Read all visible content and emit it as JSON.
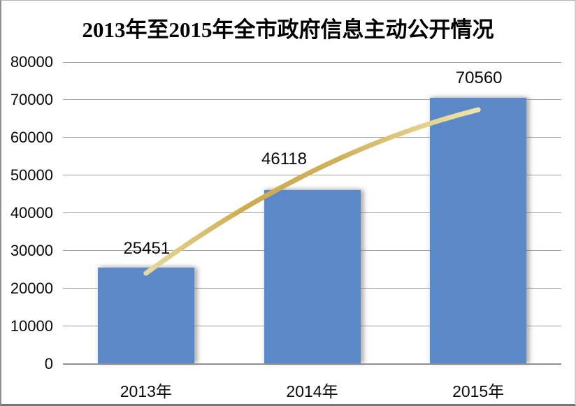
{
  "chart_data": {
    "type": "bar",
    "title": "2013年至2015年全市政府信息主动公开情况",
    "categories": [
      "2013年",
      "2014年",
      "2015年"
    ],
    "values": [
      25451,
      46118,
      70560
    ],
    "data_labels": [
      "25451",
      "46118",
      "70560"
    ],
    "xlabel": "",
    "ylabel": "",
    "ylim": [
      0,
      80000
    ],
    "ytick_step": 10000,
    "ytick_labels": [
      "80000",
      "70000",
      "60000",
      "50000",
      "40000",
      "30000",
      "20000",
      "10000",
      "0"
    ],
    "grid": "horizontal-only",
    "legend": "none",
    "bar_color": "#5B89C7",
    "gridline_color": "#a0a0a0",
    "axis_line_color": "#8f8f8f",
    "trendline": {
      "shape": "curved-upward-flattening",
      "color_stops": [
        "#E7D99F",
        "#CDAC4F",
        "#CFB059",
        "#EEE5AB"
      ],
      "approx_points": [
        [
          0,
          24000
        ],
        [
          1,
          51000
        ],
        [
          2,
          67400
        ]
      ]
    }
  }
}
